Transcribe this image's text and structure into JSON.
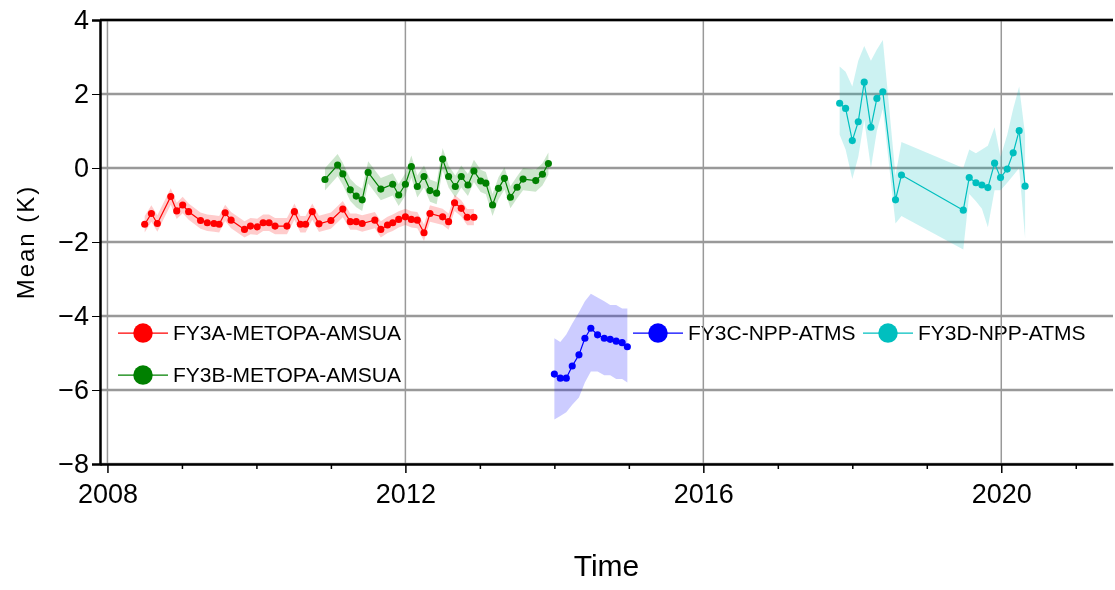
{
  "chart_data": {
    "type": "line",
    "xlabel": "Time",
    "ylabel": "Mean (K)",
    "xlim": [
      2007.9,
      2021.5
    ],
    "ylim": [
      -8,
      4
    ],
    "xticks": [
      2008,
      {
        "value": 2009,
        "label": null
      },
      {
        "value": 2010,
        "label": null
      },
      {
        "value": 2011,
        "label": null
      },
      2012,
      {
        "value": 2013,
        "label": null
      },
      {
        "value": 2014,
        "label": null
      },
      {
        "value": 2015,
        "label": null
      },
      2016,
      {
        "value": 2017,
        "label": null
      },
      {
        "value": 2018,
        "label": null
      },
      {
        "value": 2019,
        "label": null
      },
      2020,
      {
        "value": 2021,
        "label": null
      }
    ],
    "yticks": [
      -8,
      -6,
      -4,
      -2,
      0,
      2,
      4
    ],
    "grid": true,
    "legend": "bottom",
    "marker": "circle",
    "line_style": "solid",
    "series": [
      {
        "name": "FY3A-METOPA-AMSUA",
        "color": "#ff0000",
        "x": [
          2008.5,
          2008.59,
          2008.67,
          2008.85,
          2008.93,
          2009.01,
          2009.09,
          2009.25,
          2009.34,
          2009.43,
          2009.5,
          2009.58,
          2009.66,
          2009.84,
          2009.92,
          2010.01,
          2010.09,
          2010.17,
          2010.25,
          2010.41,
          2010.51,
          2010.59,
          2010.66,
          2010.75,
          2010.84,
          2011.0,
          2011.16,
          2011.26,
          2011.34,
          2011.42,
          2011.59,
          2011.67,
          2011.76,
          2011.83,
          2011.91,
          2012.0,
          2012.08,
          2012.16,
          2012.25,
          2012.33,
          2012.5,
          2012.58,
          2012.66,
          2012.75,
          2012.83,
          2012.92
        ],
        "values": [
          -1.52,
          -1.23,
          -1.5,
          -0.77,
          -1.16,
          -1.0,
          -1.18,
          -1.42,
          -1.48,
          -1.5,
          -1.52,
          -1.21,
          -1.41,
          -1.66,
          -1.57,
          -1.59,
          -1.48,
          -1.48,
          -1.57,
          -1.57,
          -1.18,
          -1.52,
          -1.52,
          -1.18,
          -1.51,
          -1.42,
          -1.11,
          -1.45,
          -1.45,
          -1.5,
          -1.41,
          -1.66,
          -1.54,
          -1.48,
          -1.39,
          -1.32,
          -1.39,
          -1.41,
          -1.75,
          -1.23,
          -1.32,
          -1.45,
          -0.94,
          -1.09,
          -1.33,
          -1.33
        ],
        "lower": [
          -1.74,
          -1.45,
          -1.72,
          -0.99,
          -1.38,
          -1.22,
          -1.4,
          -1.64,
          -1.7,
          -1.72,
          -1.74,
          -1.43,
          -1.63,
          -1.88,
          -1.79,
          -1.81,
          -1.7,
          -1.7,
          -1.79,
          -1.79,
          -1.4,
          -1.74,
          -1.74,
          -1.4,
          -1.73,
          -1.64,
          -1.33,
          -1.67,
          -1.67,
          -1.72,
          -1.63,
          -1.88,
          -1.76,
          -1.7,
          -1.61,
          -1.54,
          -1.61,
          -1.63,
          -1.97,
          -1.45,
          -1.54,
          -1.67,
          -1.16,
          -1.31,
          -1.55,
          -1.55
        ],
        "upper": [
          -1.3,
          -1.01,
          -1.28,
          -0.55,
          -0.94,
          -0.78,
          -0.96,
          -1.2,
          -1.26,
          -1.28,
          -1.3,
          -0.99,
          -1.19,
          -1.44,
          -1.35,
          -1.37,
          -1.26,
          -1.26,
          -1.35,
          -1.35,
          -0.96,
          -1.3,
          -1.3,
          -0.96,
          -1.29,
          -1.2,
          -0.89,
          -1.23,
          -1.23,
          -1.28,
          -1.19,
          -1.44,
          -1.32,
          -1.26,
          -1.17,
          -1.1,
          -1.17,
          -1.19,
          -1.53,
          -1.01,
          -1.1,
          -1.23,
          -0.72,
          -0.87,
          -1.11,
          -1.11
        ]
      },
      {
        "name": "FY3B-METOPA-AMSUA",
        "color": "#008000",
        "x": [
          2010.92,
          2011.09,
          2011.16,
          2011.26,
          2011.34,
          2011.42,
          2011.5,
          2011.67,
          2011.83,
          2011.91,
          2012.0,
          2012.08,
          2012.16,
          2012.25,
          2012.33,
          2012.42,
          2012.5,
          2012.58,
          2012.67,
          2012.75,
          2012.84,
          2012.92,
          2013.01,
          2013.08,
          2013.17,
          2013.25,
          2013.33,
          2013.41,
          2013.5,
          2013.58,
          2013.75,
          2013.84,
          2013.92
        ],
        "values": [
          -0.31,
          0.08,
          -0.16,
          -0.59,
          -0.76,
          -0.86,
          -0.12,
          -0.57,
          -0.44,
          -0.73,
          -0.44,
          0.04,
          -0.5,
          -0.23,
          -0.61,
          -0.68,
          0.24,
          -0.23,
          -0.5,
          -0.23,
          -0.46,
          -0.08,
          -0.35,
          -0.41,
          -1.0,
          -0.55,
          -0.28,
          -0.79,
          -0.52,
          -0.3,
          -0.34,
          -0.17,
          0.12
        ],
        "lower": [
          -0.61,
          -0.22,
          -0.46,
          -0.89,
          -1.06,
          -1.16,
          -0.42,
          -0.87,
          -0.74,
          -1.03,
          -0.74,
          -0.26,
          -0.8,
          -0.53,
          -0.91,
          -0.98,
          -0.06,
          -0.53,
          -0.8,
          -0.53,
          -0.76,
          -0.38,
          -0.65,
          -0.71,
          -1.3,
          -0.85,
          -0.58,
          -1.09,
          -0.82,
          -0.6,
          -0.64,
          -0.47,
          -0.18
        ],
        "upper": [
          -0.01,
          0.38,
          0.14,
          -0.29,
          -0.46,
          -0.56,
          0.18,
          -0.27,
          -0.14,
          -0.43,
          -0.14,
          0.34,
          -0.2,
          0.07,
          -0.31,
          -0.38,
          0.54,
          0.07,
          -0.2,
          0.07,
          -0.16,
          0.22,
          -0.05,
          -0.11,
          -0.7,
          -0.25,
          0.02,
          -0.49,
          -0.22,
          0.0,
          -0.04,
          0.13,
          0.42
        ]
      },
      {
        "name": "FY3C-NPP-ATMS",
        "color": "#0000ff",
        "x": [
          2014.0,
          2014.08,
          2014.16,
          2014.24,
          2014.33,
          2014.41,
          2014.49,
          2014.58,
          2014.67,
          2014.75,
          2014.83,
          2014.91,
          2014.98
        ],
        "values": [
          -5.57,
          -5.68,
          -5.68,
          -5.35,
          -5.05,
          -4.6,
          -4.33,
          -4.51,
          -4.6,
          -4.63,
          -4.68,
          -4.72,
          -4.83
        ],
        "lower": [
          -6.8,
          -6.7,
          -6.6,
          -6.4,
          -6.2,
          -5.8,
          -5.5,
          -5.5,
          -5.6,
          -5.6,
          -5.7,
          -5.7,
          -5.8
        ],
        "upper": [
          -4.6,
          -4.7,
          -4.5,
          -4.2,
          -3.9,
          -3.6,
          -3.4,
          -3.5,
          -3.6,
          -3.7,
          -3.7,
          -3.8,
          -3.8
        ]
      },
      {
        "name": "FY3D-NPP-ATMS",
        "color": "#00bfbf",
        "x": [
          2017.83,
          2017.91,
          2018.0,
          2018.08,
          2018.16,
          2018.25,
          2018.33,
          2018.41,
          2018.58,
          2018.66,
          2019.49,
          2019.57,
          2019.66,
          2019.74,
          2019.82,
          2019.91,
          2019.99,
          2020.08,
          2020.16,
          2020.24,
          2020.32
        ],
        "values": [
          1.75,
          1.61,
          0.74,
          1.25,
          2.32,
          1.1,
          1.88,
          2.06,
          -0.86,
          -0.19,
          -1.14,
          -0.26,
          -0.4,
          -0.46,
          -0.53,
          0.13,
          -0.26,
          -0.03,
          0.41,
          1.01,
          -0.49
        ],
        "lower": [
          0.9,
          0.5,
          -0.3,
          0.3,
          1.3,
          0.0,
          1.0,
          1.6,
          -1.5,
          -1.3,
          -2.2,
          -0.7,
          -0.9,
          -1.1,
          -1.6,
          -0.6,
          -0.6,
          -0.4,
          -0.2,
          0.0,
          -1.9
        ],
        "upper": [
          2.74,
          2.6,
          2.2,
          2.9,
          3.3,
          2.9,
          3.2,
          3.46,
          -0.2,
          0.7,
          0.0,
          0.5,
          0.4,
          0.5,
          0.6,
          1.1,
          0.3,
          0.9,
          1.6,
          2.2,
          0.9
        ]
      }
    ]
  }
}
